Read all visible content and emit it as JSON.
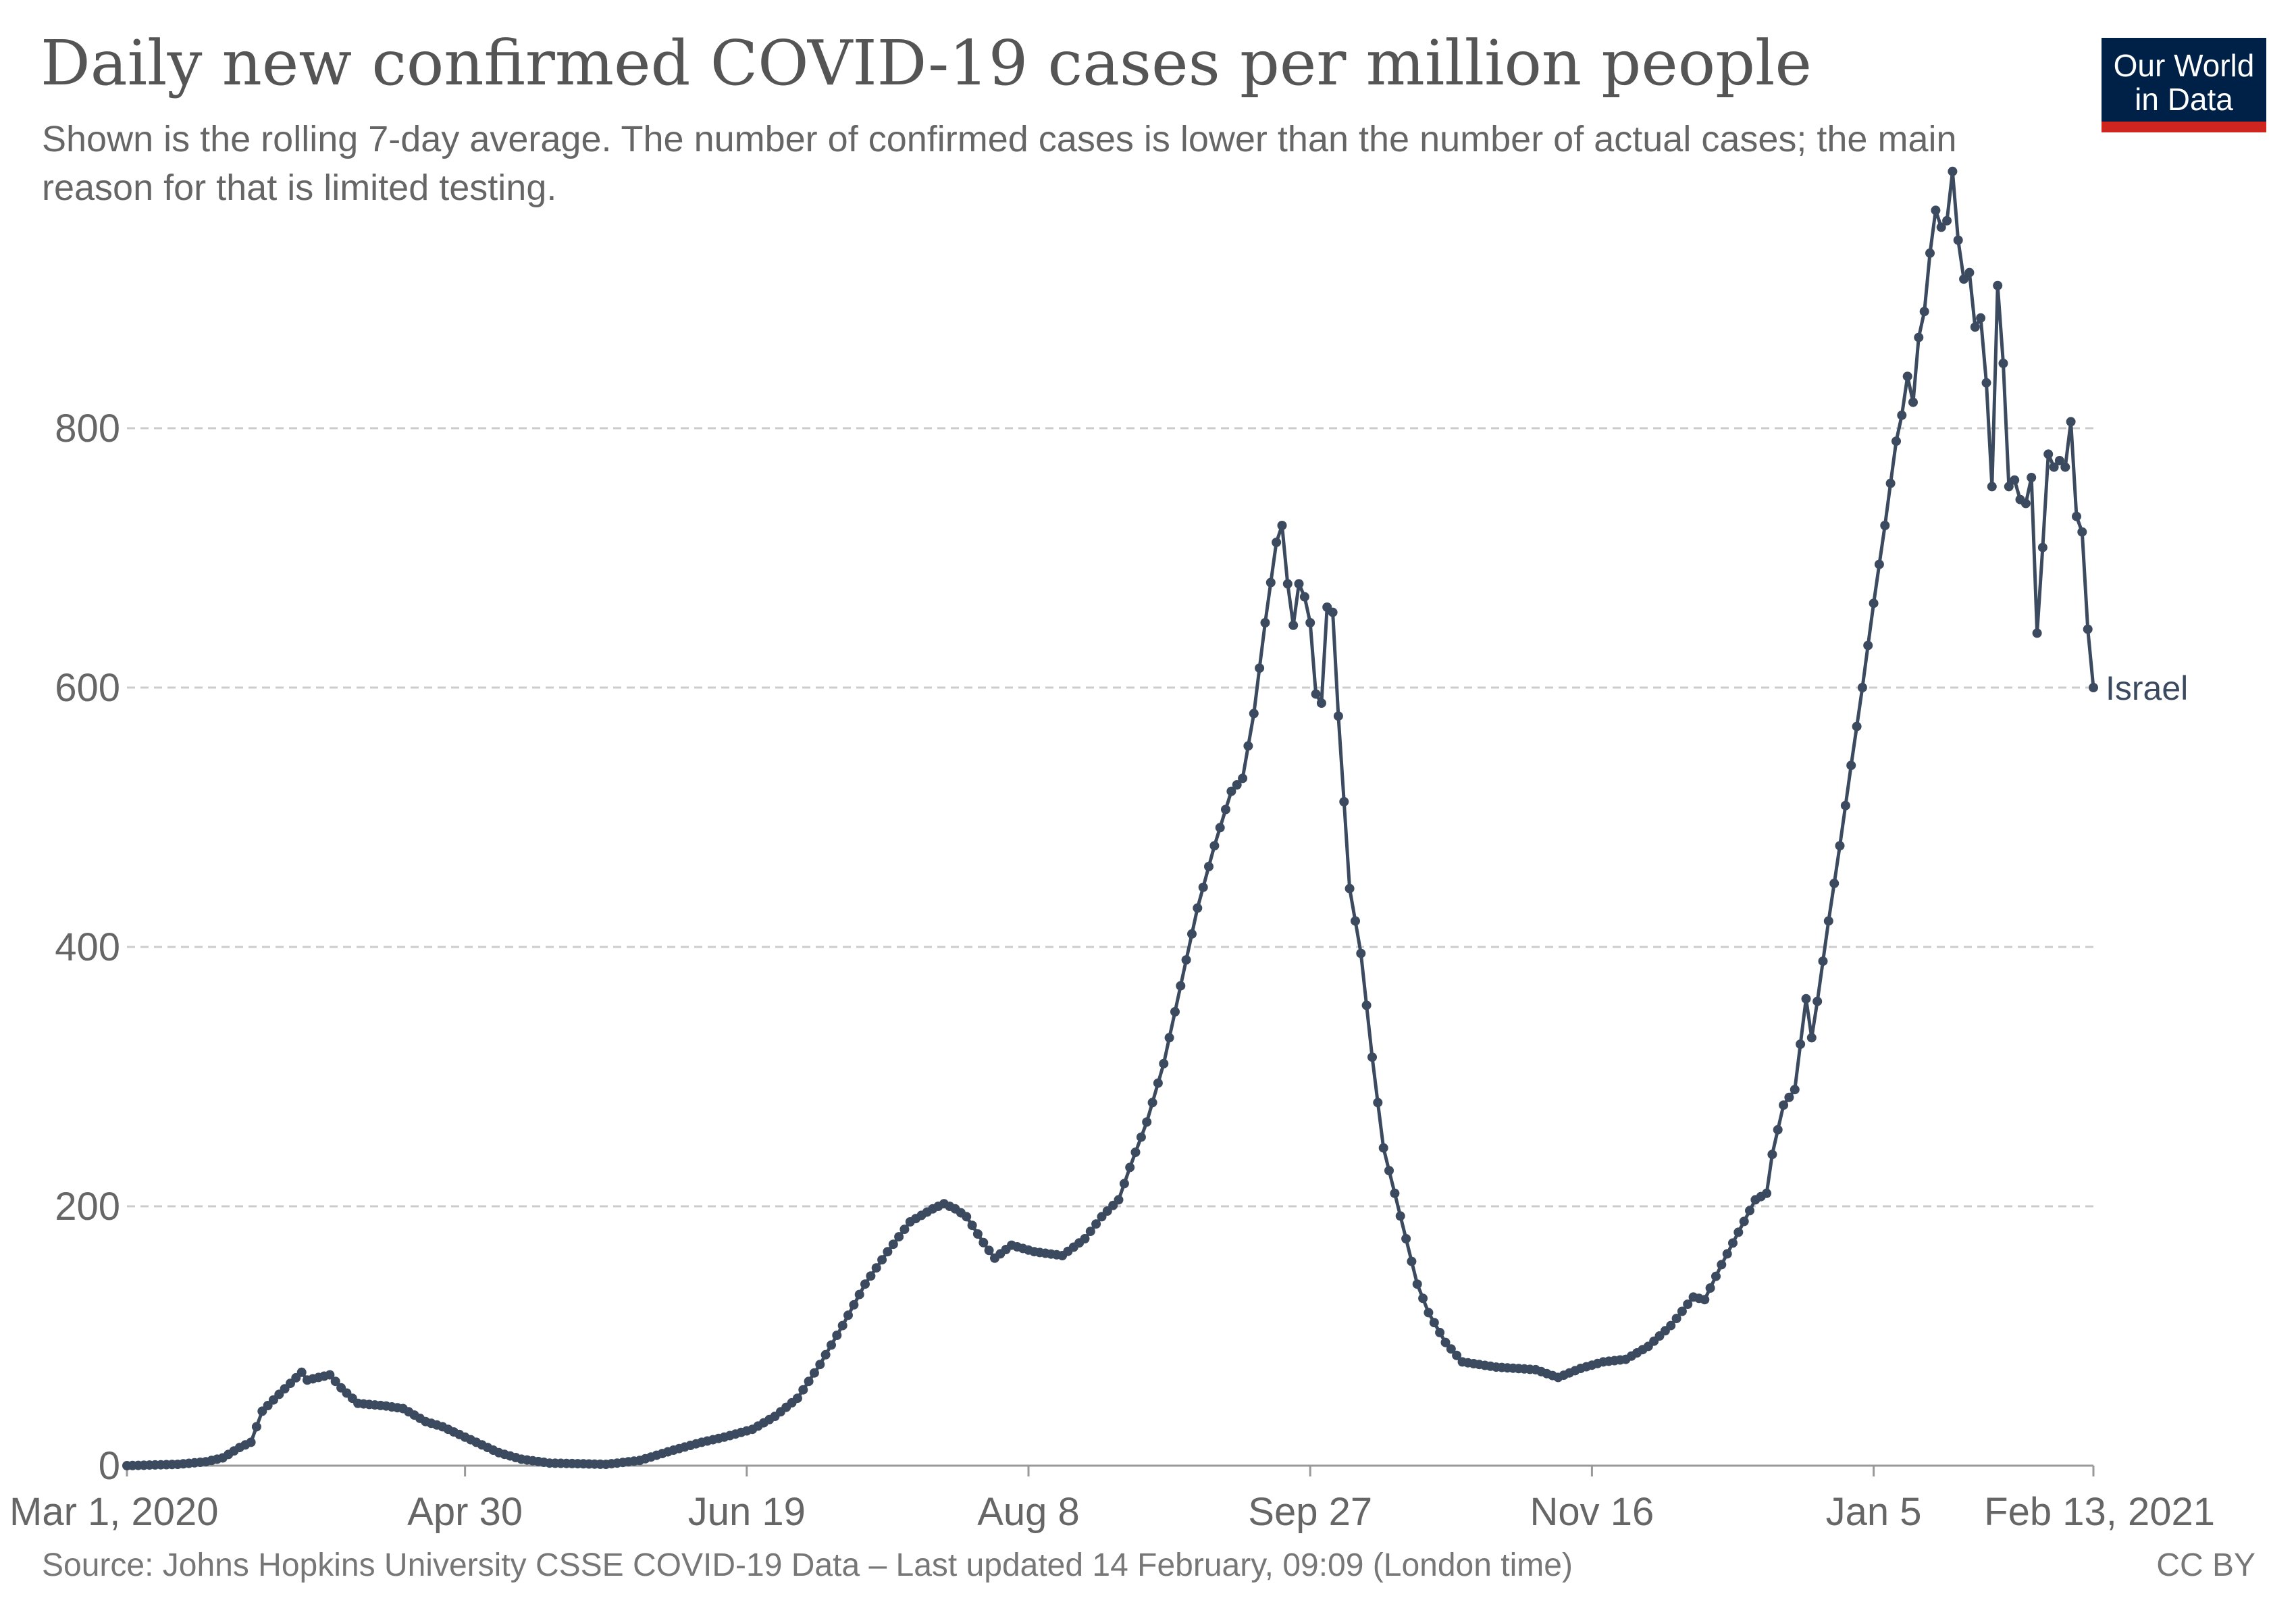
{
  "header": {
    "title": "Daily new confirmed COVID-19 cases per million people",
    "subtitle": "Shown is the rolling 7-day average. The number of confirmed cases is lower than the number of actual cases; the main reason for that is limited testing."
  },
  "logo": {
    "line1": "Our World",
    "line2": "in Data",
    "bg_color": "#002147",
    "bar_color": "#ce261e"
  },
  "footer": {
    "source": "Source: Johns Hopkins University CSSE COVID-19 Data – Last updated 14 February, 09:09 (London time)",
    "license": "CC BY"
  },
  "chart_data": {
    "type": "line",
    "title": "Daily new confirmed COVID-19 cases per million people",
    "xlabel": "",
    "ylabel": "",
    "ylim": [
      0,
      1000
    ],
    "xlim": [
      "2020-03-01",
      "2021-02-13"
    ],
    "y_ticks": [
      0,
      200,
      400,
      600,
      800
    ],
    "x_ticks": [
      {
        "date": "2020-03-01",
        "label": "Mar 1, 2020"
      },
      {
        "date": "2020-04-30",
        "label": "Apr 30"
      },
      {
        "date": "2020-06-19",
        "label": "Jun 19"
      },
      {
        "date": "2020-08-08",
        "label": "Aug 8"
      },
      {
        "date": "2020-09-27",
        "label": "Sep 27"
      },
      {
        "date": "2020-11-16",
        "label": "Nov 16"
      },
      {
        "date": "2021-01-05",
        "label": "Jan 5"
      },
      {
        "date": "2021-02-13",
        "label": "Feb 13, 2021"
      }
    ],
    "grid": "horizontal-dashed",
    "legend": "end-of-line label",
    "series": [
      {
        "name": "Israel",
        "color": "#3b4a5f",
        "points": [
          [
            "2020-03-01",
            0
          ],
          [
            "2020-03-10",
            1
          ],
          [
            "2020-03-15",
            3
          ],
          [
            "2020-03-18",
            6
          ],
          [
            "2020-03-21",
            14
          ],
          [
            "2020-03-23",
            18
          ],
          [
            "2020-03-25",
            42
          ],
          [
            "2020-03-28",
            55
          ],
          [
            "2020-04-01",
            72
          ],
          [
            "2020-04-02",
            66
          ],
          [
            "2020-04-06",
            70
          ],
          [
            "2020-04-08",
            60
          ],
          [
            "2020-04-11",
            48
          ],
          [
            "2020-04-16",
            46
          ],
          [
            "2020-04-19",
            44
          ],
          [
            "2020-04-23",
            34
          ],
          [
            "2020-04-26",
            30
          ],
          [
            "2020-04-30",
            22
          ],
          [
            "2020-05-06",
            10
          ],
          [
            "2020-05-10",
            5
          ],
          [
            "2020-05-15",
            2
          ],
          [
            "2020-05-25",
            1
          ],
          [
            "2020-05-31",
            4
          ],
          [
            "2020-06-06",
            12
          ],
          [
            "2020-06-11",
            18
          ],
          [
            "2020-06-15",
            22
          ],
          [
            "2020-06-20",
            28
          ],
          [
            "2020-06-24",
            38
          ],
          [
            "2020-06-28",
            52
          ],
          [
            "2020-07-02",
            78
          ],
          [
            "2020-07-06",
            108
          ],
          [
            "2020-07-10",
            140
          ],
          [
            "2020-07-14",
            165
          ],
          [
            "2020-07-18",
            188
          ],
          [
            "2020-07-22",
            198
          ],
          [
            "2020-07-24",
            202
          ],
          [
            "2020-07-26",
            198
          ],
          [
            "2020-07-28",
            192
          ],
          [
            "2020-07-31",
            172
          ],
          [
            "2020-08-02",
            160
          ],
          [
            "2020-08-05",
            170
          ],
          [
            "2020-08-09",
            165
          ],
          [
            "2020-08-14",
            162
          ],
          [
            "2020-08-18",
            175
          ],
          [
            "2020-08-21",
            192
          ],
          [
            "2020-08-24",
            205
          ],
          [
            "2020-08-26",
            230
          ],
          [
            "2020-08-29",
            265
          ],
          [
            "2020-09-01",
            310
          ],
          [
            "2020-09-04",
            370
          ],
          [
            "2020-09-07",
            430
          ],
          [
            "2020-09-10",
            478
          ],
          [
            "2020-09-13",
            520
          ],
          [
            "2020-09-15",
            530
          ],
          [
            "2020-09-17",
            580
          ],
          [
            "2020-09-19",
            650
          ],
          [
            "2020-09-21",
            712
          ],
          [
            "2020-09-22",
            725
          ],
          [
            "2020-09-23",
            680
          ],
          [
            "2020-09-24",
            648
          ],
          [
            "2020-09-25",
            680
          ],
          [
            "2020-09-26",
            670
          ],
          [
            "2020-09-27",
            650
          ],
          [
            "2020-09-28",
            595
          ],
          [
            "2020-09-29",
            588
          ],
          [
            "2020-09-30",
            662
          ],
          [
            "2020-10-01",
            658
          ],
          [
            "2020-10-02",
            578
          ],
          [
            "2020-10-03",
            512
          ],
          [
            "2020-10-04",
            445
          ],
          [
            "2020-10-06",
            395
          ],
          [
            "2020-10-08",
            315
          ],
          [
            "2020-10-10",
            245
          ],
          [
            "2020-10-12",
            210
          ],
          [
            "2020-10-14",
            175
          ],
          [
            "2020-10-16",
            140
          ],
          [
            "2020-10-18",
            118
          ],
          [
            "2020-10-21",
            95
          ],
          [
            "2020-10-24",
            80
          ],
          [
            "2020-10-30",
            76
          ],
          [
            "2020-11-06",
            74
          ],
          [
            "2020-11-10",
            68
          ],
          [
            "2020-11-14",
            75
          ],
          [
            "2020-11-18",
            80
          ],
          [
            "2020-11-22",
            82
          ],
          [
            "2020-11-26",
            92
          ],
          [
            "2020-11-30",
            108
          ],
          [
            "2020-12-04",
            130
          ],
          [
            "2020-12-06",
            128
          ],
          [
            "2020-12-09",
            155
          ],
          [
            "2020-12-12",
            180
          ],
          [
            "2020-12-15",
            205
          ],
          [
            "2020-12-17",
            210
          ],
          [
            "2020-12-18",
            240
          ],
          [
            "2020-12-20",
            278
          ],
          [
            "2020-12-22",
            290
          ],
          [
            "2020-12-24",
            360
          ],
          [
            "2020-12-25",
            330
          ],
          [
            "2020-12-26",
            358
          ],
          [
            "2020-12-28",
            420
          ],
          [
            "2020-12-30",
            478
          ],
          [
            "2021-01-01",
            540
          ],
          [
            "2021-01-03",
            600
          ],
          [
            "2021-01-05",
            665
          ],
          [
            "2021-01-07",
            725
          ],
          [
            "2021-01-09",
            790
          ],
          [
            "2021-01-10",
            810
          ],
          [
            "2021-01-11",
            840
          ],
          [
            "2021-01-12",
            820
          ],
          [
            "2021-01-13",
            870
          ],
          [
            "2021-01-14",
            890
          ],
          [
            "2021-01-15",
            935
          ],
          [
            "2021-01-16",
            968
          ],
          [
            "2021-01-17",
            955
          ],
          [
            "2021-01-18",
            960
          ],
          [
            "2021-01-19",
            998
          ],
          [
            "2021-01-20",
            945
          ],
          [
            "2021-01-21",
            915
          ],
          [
            "2021-01-22",
            920
          ],
          [
            "2021-01-23",
            878
          ],
          [
            "2021-01-24",
            885
          ],
          [
            "2021-01-25",
            835
          ],
          [
            "2021-01-26",
            755
          ],
          [
            "2021-01-27",
            910
          ],
          [
            "2021-01-28",
            850
          ],
          [
            "2021-01-29",
            755
          ],
          [
            "2021-01-30",
            760
          ],
          [
            "2021-01-31",
            745
          ],
          [
            "2021-02-01",
            742
          ],
          [
            "2021-02-02",
            762
          ],
          [
            "2021-02-03",
            642
          ],
          [
            "2021-02-04",
            708
          ],
          [
            "2021-02-05",
            780
          ],
          [
            "2021-02-06",
            770
          ],
          [
            "2021-02-07",
            775
          ],
          [
            "2021-02-08",
            770
          ],
          [
            "2021-02-09",
            805
          ],
          [
            "2021-02-10",
            732
          ],
          [
            "2021-02-11",
            720
          ],
          [
            "2021-02-12",
            645
          ],
          [
            "2021-02-13",
            600
          ]
        ]
      }
    ]
  }
}
